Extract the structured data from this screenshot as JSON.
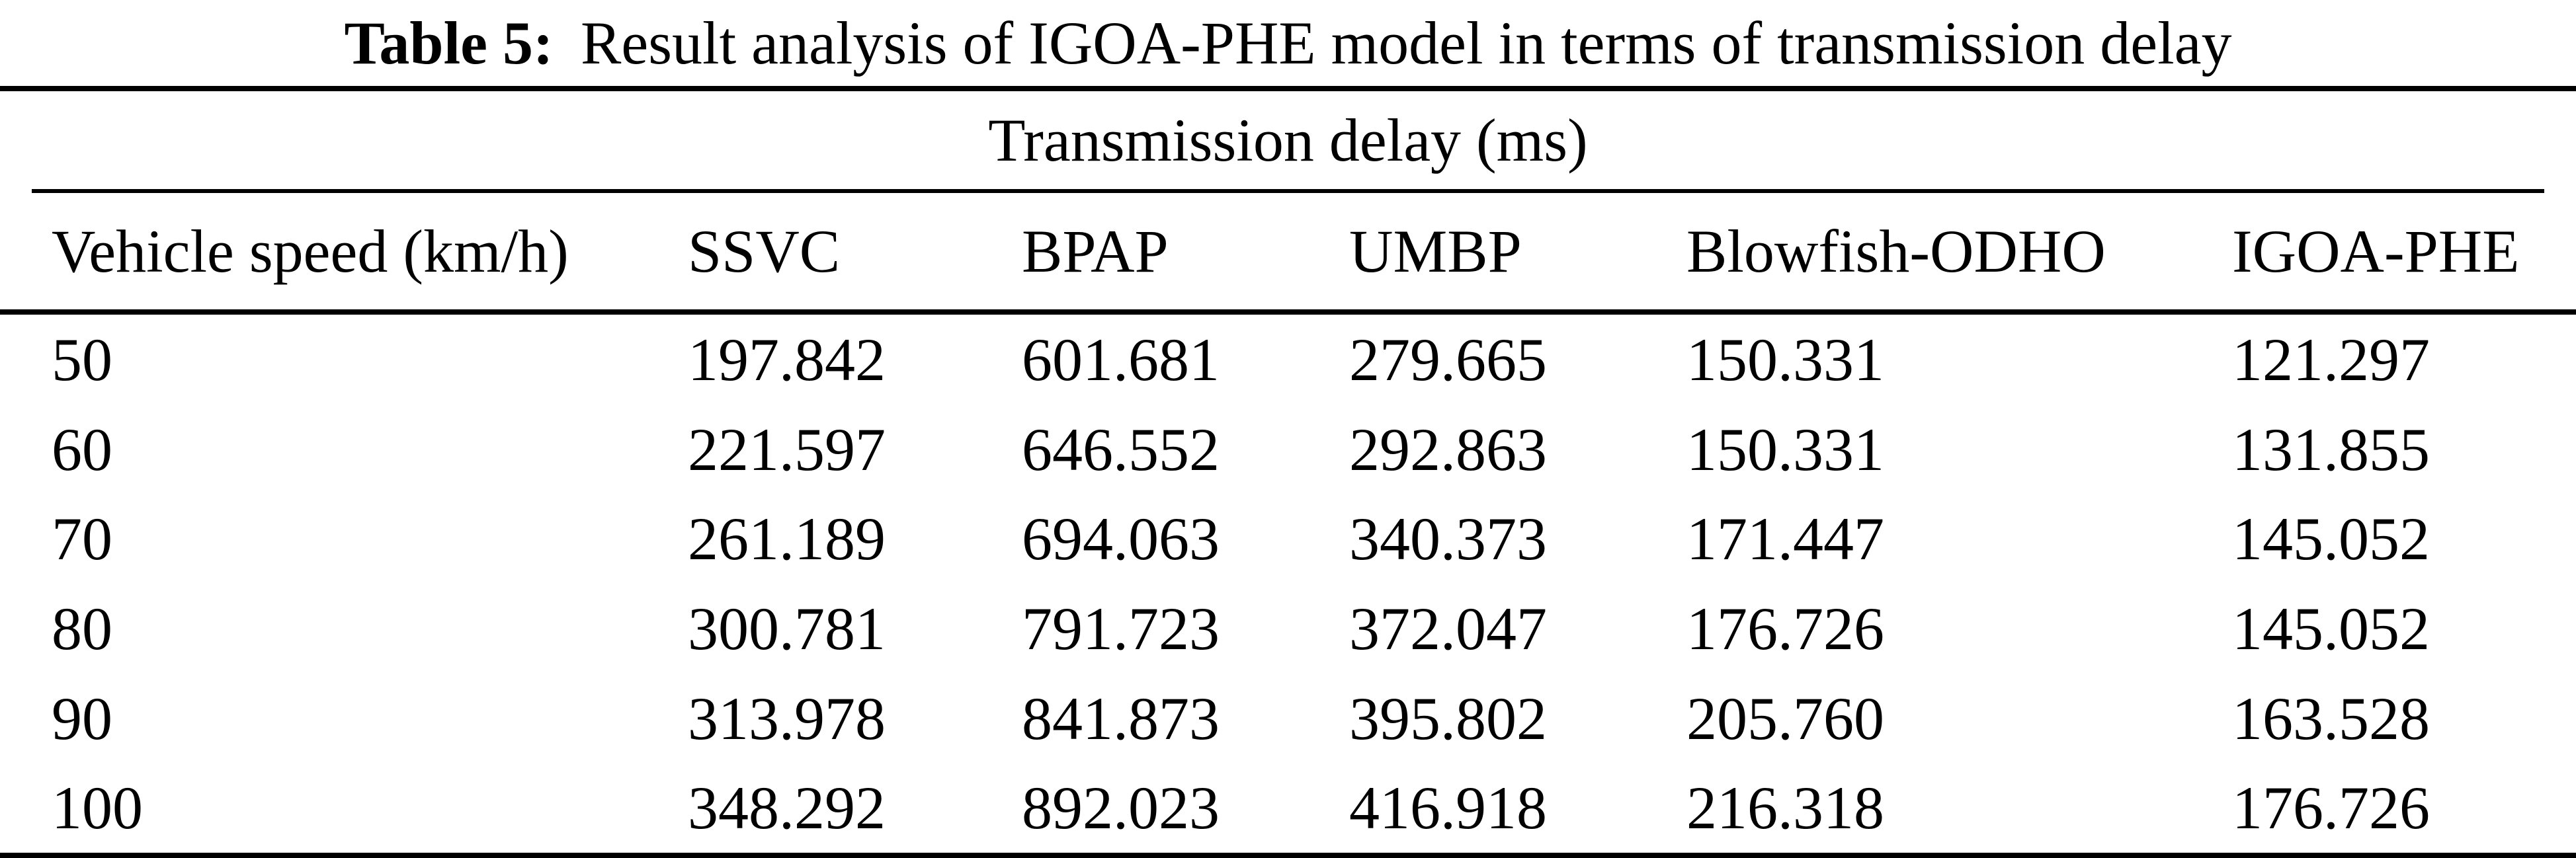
{
  "title": {
    "label": "Table 5:",
    "text": "Result analysis of IGOA-PHE model in terms of transmission delay"
  },
  "table": {
    "span_header": "Transmission delay (ms)",
    "columns": [
      "Vehicle speed (km/h)",
      "SSVC",
      "BPAP",
      "UMBP",
      "Blowfish-ODHO",
      "IGOA-PHE"
    ],
    "rows": [
      [
        "50",
        "197.842",
        "601.681",
        "279.665",
        "150.331",
        "121.297"
      ],
      [
        "60",
        "221.597",
        "646.552",
        "292.863",
        "150.331",
        "131.855"
      ],
      [
        "70",
        "261.189",
        "694.063",
        "340.373",
        "171.447",
        "145.052"
      ],
      [
        "80",
        "300.781",
        "791.723",
        "372.047",
        "176.726",
        "145.052"
      ],
      [
        "90",
        "313.978",
        "841.873",
        "395.802",
        "205.760",
        "163.528"
      ],
      [
        "100",
        "348.292",
        "892.023",
        "416.918",
        "216.318",
        "176.726"
      ]
    ]
  },
  "colors": {
    "ink": "#000000",
    "paper": "#ffffff"
  },
  "chart_data": {
    "type": "table",
    "title": "Table 5: Result analysis of IGOA-PHE model in terms of transmission delay",
    "group_header": "Transmission delay (ms)",
    "xlabel": "Vehicle speed (km/h)",
    "ylabel": "Transmission delay (ms)",
    "categories": [
      50,
      60,
      70,
      80,
      90,
      100
    ],
    "series": [
      {
        "name": "SSVC",
        "values": [
          197.842,
          221.597,
          261.189,
          300.781,
          313.978,
          348.292
        ]
      },
      {
        "name": "BPAP",
        "values": [
          601.681,
          646.552,
          694.063,
          791.723,
          841.873,
          892.023
        ]
      },
      {
        "name": "UMBP",
        "values": [
          279.665,
          292.863,
          340.373,
          372.047,
          395.802,
          416.918
        ]
      },
      {
        "name": "Blowfish-ODHO",
        "values": [
          150.331,
          150.331,
          171.447,
          176.726,
          205.76,
          216.318
        ]
      },
      {
        "name": "IGOA-PHE",
        "values": [
          121.297,
          131.855,
          145.052,
          145.052,
          163.528,
          176.726
        ]
      }
    ]
  }
}
